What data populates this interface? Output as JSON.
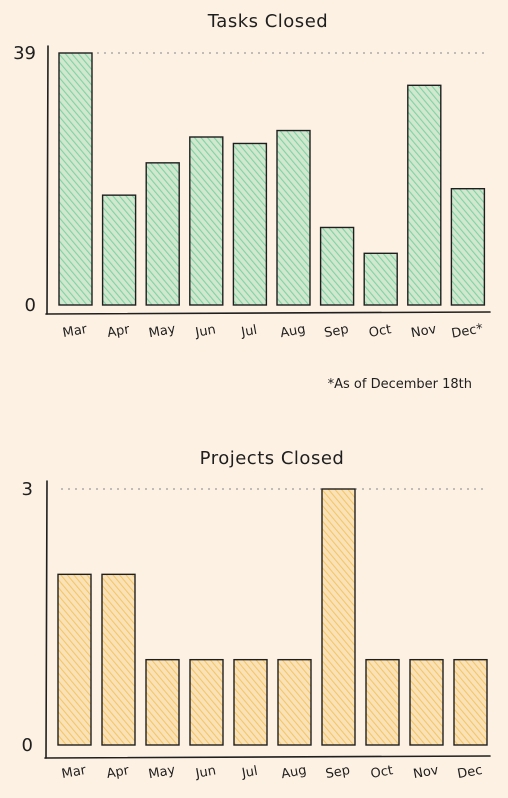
{
  "chart_data": [
    {
      "type": "bar",
      "title": "Tasks Closed",
      "categories": [
        "Mar",
        "Apr",
        "May",
        "Jun",
        "Jul",
        "Aug",
        "Sep",
        "Oct",
        "Nov",
        "Dec*"
      ],
      "values": [
        39,
        17,
        22,
        26,
        25,
        27,
        12,
        8,
        34,
        18
      ],
      "ylim": [
        0,
        39
      ],
      "yticks": [
        "0",
        "39"
      ],
      "color": "#7fd3a6",
      "reference_line": 39,
      "footnote": "*As of December 18th",
      "grid": false
    },
    {
      "type": "bar",
      "title": "Projects Closed",
      "categories": [
        "Mar",
        "Apr",
        "May",
        "Jun",
        "Jul",
        "Aug",
        "Sep",
        "Oct",
        "Nov",
        "Dec"
      ],
      "values": [
        2,
        2,
        1,
        1,
        1,
        1,
        3,
        1,
        1,
        1
      ],
      "ylim": [
        0,
        3
      ],
      "yticks": [
        "0",
        "3"
      ],
      "color": "#f4c667",
      "reference_line": 3,
      "grid": false
    }
  ]
}
